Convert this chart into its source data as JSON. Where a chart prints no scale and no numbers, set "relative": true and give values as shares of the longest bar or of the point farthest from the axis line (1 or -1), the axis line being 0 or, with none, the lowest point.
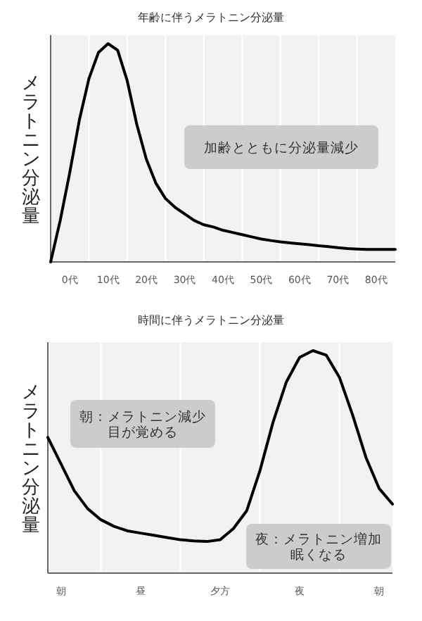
{
  "chart_data": [
    {
      "type": "line",
      "title": "年齢に伴うメラトニン分泌量",
      "ylabel": "メラトニン分泌量",
      "relative": true,
      "grid": "x",
      "marker": "none",
      "line_style": "solid",
      "categories": [
        null,
        null,
        "0代",
        null,
        null,
        null,
        "10代",
        null,
        null,
        null,
        "20代",
        null,
        null,
        null,
        "30代",
        null,
        null,
        null,
        "40代",
        null,
        null,
        null,
        "50代",
        null,
        null,
        null,
        "60代",
        null,
        null,
        null,
        "70代",
        null,
        null,
        null,
        "80代",
        null,
        null
      ],
      "series": [
        {
          "color": "#000000",
          "values": [
            0,
            0.19,
            0.41,
            0.65,
            0.84,
            0.96,
            1.0,
            0.97,
            0.83,
            0.63,
            0.47,
            0.36,
            0.29,
            0.25,
            0.22,
            0.19,
            0.17,
            0.16,
            0.145,
            0.135,
            0.125,
            0.115,
            0.105,
            0.098,
            0.092,
            0.087,
            0.083,
            0.079,
            0.074,
            0.07,
            0.065,
            0.061,
            0.059,
            0.057,
            0.057,
            0.057,
            0.057
          ]
        }
      ],
      "annotations": [
        "加齢とともに分泌量減少"
      ]
    },
    {
      "type": "line",
      "title": "時間に伴うメラトニン分泌量",
      "ylabel": "メラトニン分泌量",
      "relative": true,
      "grid": "x",
      "marker": "none",
      "line_style": "solid",
      "categories": [
        null,
        "朝",
        null,
        null,
        null,
        null,
        null,
        "昼",
        null,
        null,
        null,
        null,
        null,
        "夕方",
        null,
        null,
        null,
        null,
        null,
        "夜",
        null,
        null,
        null,
        null,
        null,
        "朝",
        null
      ],
      "series": [
        {
          "color": "#000000",
          "values": [
            0.61,
            0.49,
            0.37,
            0.29,
            0.24,
            0.21,
            0.19,
            0.18,
            0.17,
            0.16,
            0.15,
            0.145,
            0.142,
            0.15,
            0.2,
            0.28,
            0.46,
            0.68,
            0.86,
            0.97,
            1.0,
            0.98,
            0.88,
            0.71,
            0.52,
            0.38,
            0.31
          ]
        }
      ],
      "annotations": [
        "朝：メラトニン減少目が覚める",
        "夜：メラトニン増加眠くなる"
      ]
    }
  ]
}
